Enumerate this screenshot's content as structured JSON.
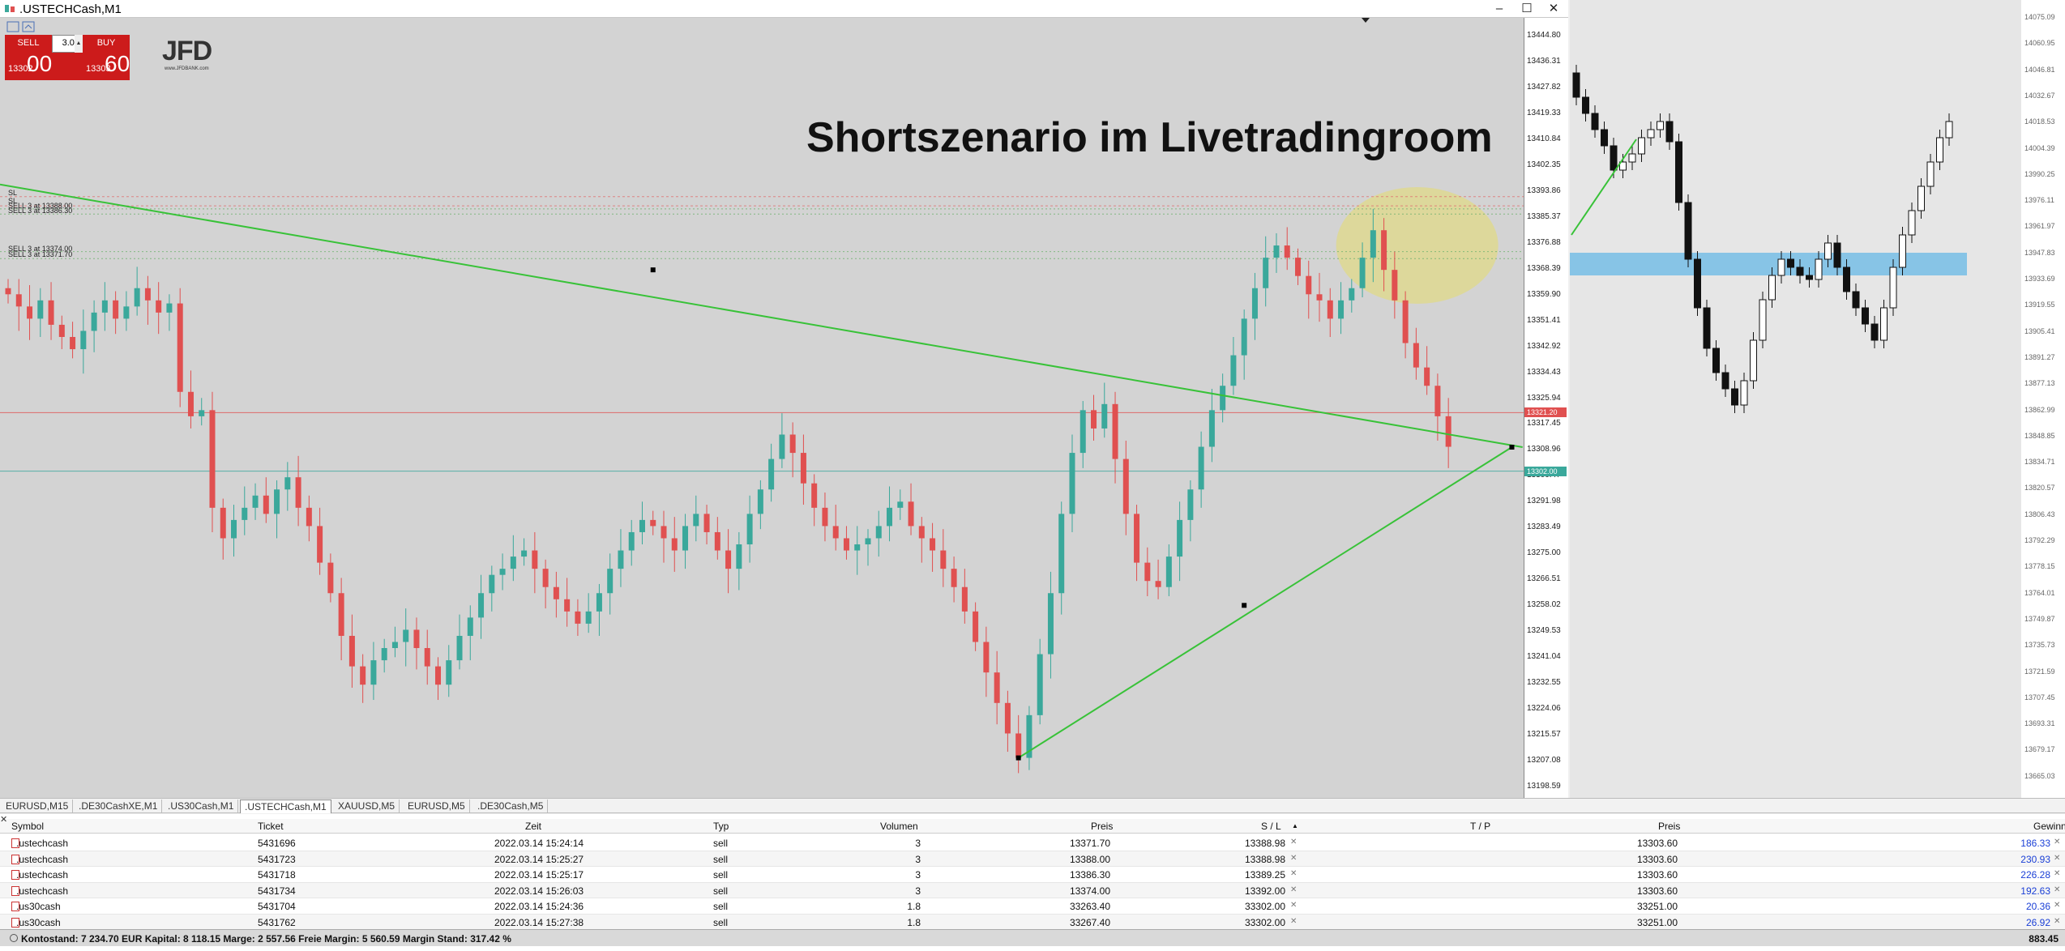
{
  "window": {
    "title": ".USTECHCash,M1",
    "minimize": "–",
    "maximize": "☐",
    "close": "✕"
  },
  "one_click": {
    "sell_label": "SELL",
    "buy_label": "BUY",
    "volume": "3.00",
    "sell_price_small": "13302",
    "sell_price_big": "00",
    "buy_price_small": "13303",
    "buy_price_big": "60"
  },
  "logo": {
    "text": "JFD",
    "sub": "www.JFDBANK.com"
  },
  "chart_title": "Shortszenario im Livetradingroom",
  "order_labels": [
    {
      "text": "SL"
    },
    {
      "text": "SL"
    },
    {
      "text": "SELL 3 at 13388.00"
    },
    {
      "text": "SELL 3 at 13386.30"
    },
    {
      "text": "SELL 3 at 13374.00"
    },
    {
      "text": "SELL 3 at 13371.70"
    }
  ],
  "price_markers": {
    "bid": "13321.20",
    "ask": "13302.00",
    "ask_shadow": "13300.47"
  },
  "chart_data": {
    "type": "candlestick",
    "symbol": ".USTECHCash",
    "timeframe": "M1",
    "ylim": [
      13198.59,
      13444.8
    ],
    "y_ticks": [
      "13444.80",
      "13436.31",
      "13427.82",
      "13419.33",
      "13410.84",
      "13402.35",
      "13393.86",
      "13385.37",
      "13376.88",
      "13368.39",
      "13359.90",
      "13351.41",
      "13342.92",
      "13334.43",
      "13325.94",
      "13317.45",
      "13308.96",
      "13300.47",
      "13291.98",
      "13283.49",
      "13275.00",
      "13266.51",
      "13258.02",
      "13249.53",
      "13241.04",
      "13232.55",
      "13224.06",
      "13215.57",
      "13207.08",
      "13198.59"
    ],
    "closes": [
      13360,
      13356,
      13352,
      13358,
      13350,
      13346,
      13342,
      13348,
      13354,
      13358,
      13352,
      13356,
      13362,
      13358,
      13354,
      13357,
      13328,
      13320,
      13322,
      13290,
      13280,
      13286,
      13290,
      13294,
      13288,
      13296,
      13300,
      13290,
      13284,
      13272,
      13262,
      13248,
      13238,
      13232,
      13240,
      13244,
      13246,
      13250,
      13244,
      13238,
      13232,
      13240,
      13248,
      13254,
      13262,
      13268,
      13270,
      13274,
      13276,
      13270,
      13264,
      13260,
      13256,
      13252,
      13256,
      13262,
      13270,
      13276,
      13282,
      13286,
      13284,
      13280,
      13276,
      13284,
      13288,
      13282,
      13276,
      13270,
      13278,
      13288,
      13296,
      13306,
      13314,
      13308,
      13298,
      13290,
      13284,
      13280,
      13276,
      13278,
      13280,
      13284,
      13290,
      13292,
      13284,
      13280,
      13276,
      13270,
      13264,
      13256,
      13246,
      13236,
      13226,
      13216,
      13208,
      13222,
      13242,
      13262,
      13288,
      13308,
      13322,
      13316,
      13324,
      13306,
      13288,
      13272,
      13266,
      13264,
      13274,
      13286,
      13296,
      13310,
      13322,
      13330,
      13340,
      13352,
      13362,
      13372,
      13376,
      13372,
      13366,
      13360,
      13358,
      13352,
      13358,
      13362,
      13372,
      13381,
      13368,
      13358,
      13344,
      13336,
      13330,
      13320,
      13310
    ],
    "trendlines": [
      {
        "name": "descending resistance",
        "from": [
          0,
          13396
        ],
        "to": [
          140,
          13312
        ]
      },
      {
        "name": "ascending support",
        "from": [
          94,
          13208
        ],
        "to": [
          139,
          13312
        ]
      }
    ],
    "horizontal_levels": [
      {
        "name": "bid",
        "value": 13321.2
      },
      {
        "name": "ask",
        "value": 13302.0
      },
      {
        "name": "SL",
        "value": 13392.0
      },
      {
        "name": "SL",
        "value": 13389.0
      },
      {
        "name": "entry",
        "value": 13388.0
      },
      {
        "name": "entry",
        "value": 13386.3
      },
      {
        "name": "entry",
        "value": 13374.0
      },
      {
        "name": "entry",
        "value": 13371.7
      }
    ],
    "highlight": {
      "shape": "ellipse",
      "center": [
        132,
        13376
      ],
      "color": "#e6dc6e"
    }
  },
  "right_chart": {
    "y_ticks": [
      "14075.09",
      "14060.95",
      "14046.81",
      "14032.67",
      "14018.53",
      "14004.39",
      "13990.25",
      "13976.11",
      "13961.97",
      "13947.83",
      "13933.69",
      "13919.55",
      "13905.41",
      "13891.27",
      "13877.13",
      "13862.99",
      "13848.85",
      "13834.71",
      "13820.57",
      "13806.43",
      "13792.29",
      "13778.15",
      "13764.01",
      "13749.87",
      "13735.73",
      "13721.59",
      "13707.45",
      "13693.31",
      "13679.17",
      "13665.03"
    ]
  },
  "tabs": [
    {
      "label": "EURUSD,M15"
    },
    {
      "label": ".DE30CashXE,M1"
    },
    {
      "label": ".US30Cash,M1"
    },
    {
      "label": ".USTECHCash,M1",
      "active": true
    },
    {
      "label": "XAUUSD,M5"
    },
    {
      "label": "EURUSD,M5"
    },
    {
      "label": ".DE30Cash,M5"
    }
  ],
  "table": {
    "headers": {
      "symbol": "Symbol",
      "ticket": "Ticket",
      "zeit": "Zeit",
      "typ": "Typ",
      "volumen": "Volumen",
      "preis": "Preis",
      "sl": "S / L",
      "tp": "T / P",
      "preis2": "Preis",
      "gewinn": "Gewinn"
    },
    "rows": [
      {
        "symbol": ".ustechcash",
        "ticket": "5431696",
        "zeit": "2022.03.14 15:24:14",
        "typ": "sell",
        "volumen": "3",
        "preis": "13371.70",
        "sl": "13388.98",
        "tp": "",
        "preis2": "13303.60",
        "gewinn": "186.33"
      },
      {
        "symbol": ".ustechcash",
        "ticket": "5431723",
        "zeit": "2022.03.14 15:25:27",
        "typ": "sell",
        "volumen": "3",
        "preis": "13388.00",
        "sl": "13388.98",
        "tp": "",
        "preis2": "13303.60",
        "gewinn": "230.93"
      },
      {
        "symbol": ".ustechcash",
        "ticket": "5431718",
        "zeit": "2022.03.14 15:25:17",
        "typ": "sell",
        "volumen": "3",
        "preis": "13386.30",
        "sl": "13389.25",
        "tp": "",
        "preis2": "13303.60",
        "gewinn": "226.28"
      },
      {
        "symbol": ".ustechcash",
        "ticket": "5431734",
        "zeit": "2022.03.14 15:26:03",
        "typ": "sell",
        "volumen": "3",
        "preis": "13374.00",
        "sl": "13392.00",
        "tp": "",
        "preis2": "13303.60",
        "gewinn": "192.63"
      },
      {
        "symbol": ".us30cash",
        "ticket": "5431704",
        "zeit": "2022.03.14 15:24:36",
        "typ": "sell",
        "volumen": "1.8",
        "preis": "33263.40",
        "sl": "33302.00",
        "tp": "",
        "preis2": "33251.00",
        "gewinn": "20.36"
      },
      {
        "symbol": ".us30cash",
        "ticket": "5431762",
        "zeit": "2022.03.14 15:27:38",
        "typ": "sell",
        "volumen": "1.8",
        "preis": "33267.40",
        "sl": "33302.00",
        "tp": "",
        "preis2": "33251.00",
        "gewinn": "26.92"
      }
    ],
    "status_line": "Kontostand: 7 234.70 EUR  Kapital: 8 118.15  Marge: 2 557.56  Freie Margin: 5 560.59  Margin Stand: 317.42 %",
    "total_profit": "883.45"
  },
  "colors": {
    "bull": "#3aa89b",
    "bear": "#e05050",
    "trendline": "#38c238",
    "bg": "#d3d3d3",
    "sell_button": "#cc1b1b",
    "highlight": "#e6dc6e",
    "zone": "#87c4e6"
  }
}
